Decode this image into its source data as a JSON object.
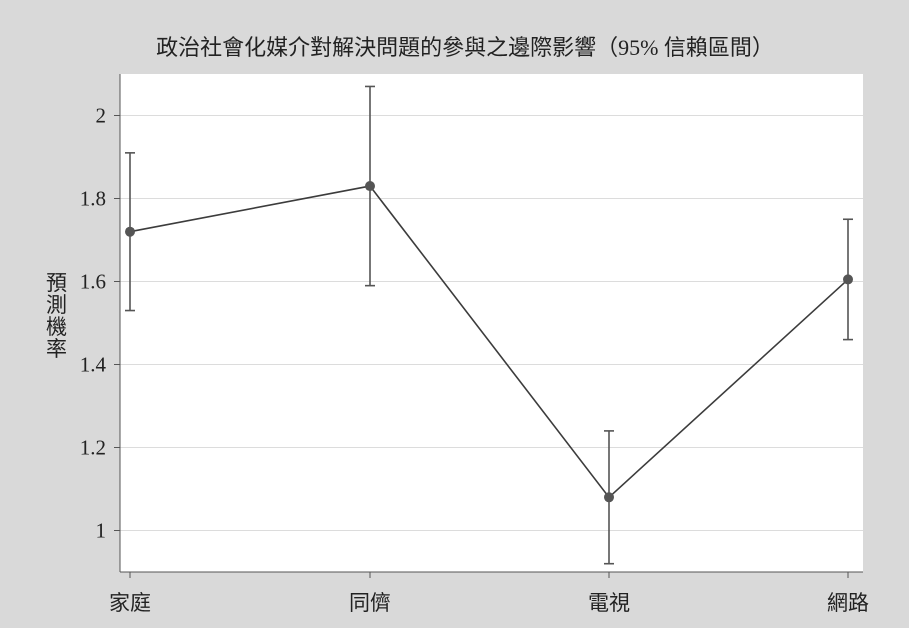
{
  "chart_data": {
    "type": "line",
    "title": "政治社會化媒介對解決問題的參與之邊際影響（95% 信賴區間）",
    "xlabel": "",
    "ylabel": "預測機率",
    "categories": [
      "家庭",
      "同儕",
      "電視",
      "網路"
    ],
    "series": [
      {
        "values": [
          1.72,
          1.83,
          1.08,
          1.605
        ],
        "ci_lower": [
          1.53,
          1.59,
          0.92,
          1.46
        ],
        "ci_upper": [
          1.91,
          2.07,
          1.24,
          1.75
        ]
      }
    ],
    "yticks": [
      1,
      1.2,
      1.4,
      1.6,
      1.8,
      2
    ],
    "ytick_labels": [
      "1",
      "1.2",
      "1.4",
      "1.6",
      "1.8",
      "2"
    ],
    "ylim": [
      0.9,
      2.1
    ],
    "grid": true,
    "colors": {
      "background": "#d9d9d9",
      "plot": "#ffffff",
      "series": "#3c3c3c",
      "grid": "#dcdcdc"
    }
  }
}
